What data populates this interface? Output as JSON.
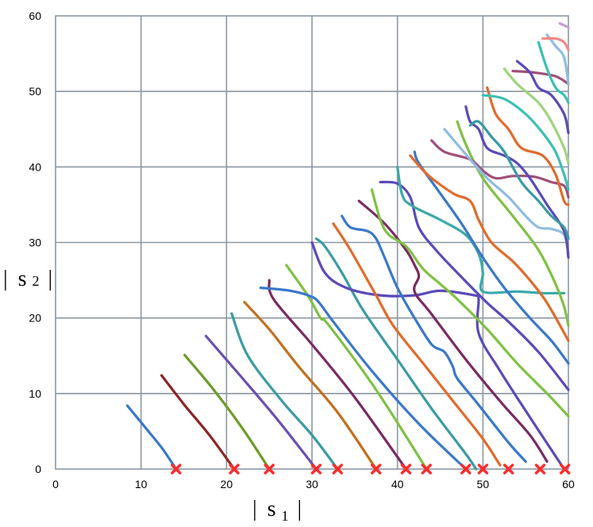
{
  "chart_data": {
    "type": "line",
    "title": "",
    "xlabel": {
      "bar": "|",
      "base": "s",
      "sub": "1"
    },
    "ylabel": {
      "bar": "|",
      "base": "s",
      "sub": "2"
    },
    "xlim": [
      0,
      60
    ],
    "ylim": [
      0,
      60
    ],
    "xticks": [
      "0",
      "10",
      "20",
      "30",
      "40",
      "50",
      "60"
    ],
    "yticks": [
      "0",
      "10",
      "20",
      "30",
      "40",
      "50",
      "60"
    ],
    "grid": true,
    "legend": "none",
    "markers": [
      14.1,
      20.9,
      25.0,
      30.5,
      33.0,
      37.5,
      41.0,
      43.4,
      48.0,
      50.0,
      53.0,
      56.7,
      59.6
    ],
    "marker_color": "#ff2a2a",
    "series": [
      {
        "color": "#3a78c9",
        "points": [
          [
            8.4,
            8.4
          ],
          [
            10.5,
            5.5
          ],
          [
            12.5,
            2.7
          ],
          [
            14.1,
            0
          ]
        ]
      },
      {
        "color": "#8b2525",
        "points": [
          [
            12.4,
            12.4
          ],
          [
            15.0,
            8.6
          ],
          [
            18.0,
            4.5
          ],
          [
            20.9,
            0
          ]
        ]
      },
      {
        "color": "#6e9b2a",
        "points": [
          [
            15.1,
            15.1
          ],
          [
            18.5,
            10.5
          ],
          [
            21.8,
            5.5
          ],
          [
            25.0,
            0
          ]
        ]
      },
      {
        "color": "#6a4fb0",
        "points": [
          [
            17.6,
            17.6
          ],
          [
            21.5,
            12.5
          ],
          [
            26.0,
            6.5
          ],
          [
            30.5,
            0
          ]
        ]
      },
      {
        "color": "#3a9ba3",
        "points": [
          [
            20.6,
            20.6
          ],
          [
            22.5,
            15.0
          ],
          [
            26.5,
            9.0
          ],
          [
            30.0,
            4.5
          ],
          [
            33.0,
            0
          ]
        ]
      },
      {
        "color": "#c0701f",
        "points": [
          [
            22.1,
            22.1
          ],
          [
            25.0,
            18.5
          ],
          [
            28.5,
            13.5
          ],
          [
            33.0,
            7.5
          ],
          [
            37.5,
            0
          ]
        ]
      },
      {
        "color": "#7a2a63",
        "points": [
          [
            25.0,
            25.0
          ],
          [
            25.5,
            22.5
          ],
          [
            30.0,
            16.5
          ],
          [
            35.0,
            9.5
          ],
          [
            41.0,
            0
          ]
        ]
      },
      {
        "color": "#7fc143",
        "points": [
          [
            27.0,
            27.0
          ],
          [
            29.5,
            23.0
          ],
          [
            31.0,
            20.0
          ],
          [
            32.0,
            19.0
          ],
          [
            37.5,
            10.5
          ],
          [
            43.4,
            0
          ]
        ]
      },
      {
        "color": "#3a78c9",
        "points": [
          [
            24.0,
            24.0
          ],
          [
            27.5,
            23.6
          ],
          [
            30.0,
            22.8
          ],
          [
            31.0,
            21.8
          ],
          [
            32.5,
            19.5
          ],
          [
            37.0,
            13.0
          ],
          [
            42.5,
            6.0
          ],
          [
            48.0,
            0
          ]
        ]
      },
      {
        "color": "#3a9ba3",
        "points": [
          [
            30.5,
            30.5
          ],
          [
            31.5,
            29.5
          ],
          [
            33.5,
            26.0
          ],
          [
            36.0,
            21.0
          ],
          [
            40.0,
            14.5
          ],
          [
            44.0,
            8.0
          ],
          [
            48.0,
            2.0
          ],
          [
            49.2,
            0
          ]
        ]
      },
      {
        "color": "#5b4ab8",
        "points": [
          [
            30.0,
            30.0
          ],
          [
            31.5,
            26.0
          ],
          [
            34.0,
            24.0
          ],
          [
            38.0,
            23.0
          ],
          [
            42.0,
            23.0
          ],
          [
            45.0,
            23.6
          ],
          [
            49.0,
            23.0
          ],
          [
            49.5,
            22.5
          ],
          [
            49.5,
            18.0
          ],
          [
            52.0,
            13.0
          ],
          [
            56.0,
            6.0
          ],
          [
            59.5,
            0
          ]
        ]
      },
      {
        "color": "#e06b2a",
        "points": [
          [
            32.5,
            32.5
          ],
          [
            34.5,
            29.0
          ],
          [
            37.5,
            23.0
          ],
          [
            39.5,
            19.0
          ],
          [
            43.0,
            14.0
          ],
          [
            46.5,
            9.0
          ],
          [
            50.0,
            4.0
          ],
          [
            52.0,
            0.5
          ]
        ]
      },
      {
        "color": "#7a2a63",
        "points": [
          [
            35.5,
            35.5
          ],
          [
            38.5,
            32.5
          ],
          [
            41.0,
            29.0
          ],
          [
            42.0,
            27.0
          ],
          [
            42.5,
            25.5
          ],
          [
            42.0,
            23.5
          ],
          [
            44.0,
            20.5
          ],
          [
            48.0,
            14.5
          ],
          [
            52.0,
            9.0
          ],
          [
            55.5,
            4.5
          ],
          [
            57.5,
            1.0
          ]
        ]
      },
      {
        "color": "#3a78c9",
        "points": [
          [
            33.5,
            33.5
          ],
          [
            34.5,
            32.0
          ],
          [
            36.5,
            31.5
          ],
          [
            37.5,
            30.5
          ],
          [
            38.5,
            28.0
          ],
          [
            40.0,
            24.0
          ],
          [
            42.0,
            20.0
          ],
          [
            44.0,
            16.5
          ],
          [
            45.5,
            15.5
          ],
          [
            46.5,
            13.5
          ],
          [
            47.0,
            12.0
          ],
          [
            49.5,
            8.5
          ],
          [
            53.0,
            3.5
          ],
          [
            55.0,
            1.0
          ]
        ]
      },
      {
        "color": "#5b4ab8",
        "points": [
          [
            38.0,
            38.0
          ],
          [
            40.0,
            37.8
          ],
          [
            41.5,
            36.0
          ],
          [
            42.5,
            32.0
          ],
          [
            44.5,
            29.0
          ],
          [
            47.0,
            26.0
          ],
          [
            50.5,
            22.0
          ],
          [
            53.0,
            19.5
          ],
          [
            56.5,
            15.5
          ],
          [
            60.0,
            10.5
          ]
        ]
      },
      {
        "color": "#7fc143",
        "points": [
          [
            37.0,
            37.0
          ],
          [
            38.0,
            33.0
          ],
          [
            39.0,
            31.0
          ],
          [
            41.0,
            29.5
          ],
          [
            43.0,
            26.5
          ],
          [
            45.0,
            24.5
          ],
          [
            47.0,
            22.5
          ],
          [
            50.5,
            18.5
          ],
          [
            54.0,
            14.0
          ],
          [
            57.5,
            10.0
          ],
          [
            60.0,
            7.0
          ]
        ]
      },
      {
        "color": "#3aa9a9",
        "points": [
          [
            40.0,
            40.0
          ],
          [
            40.5,
            36.5
          ],
          [
            41.5,
            35.0
          ],
          [
            45.0,
            33.0
          ],
          [
            48.0,
            31.0
          ],
          [
            49.5,
            28.5
          ],
          [
            50.0,
            26.0
          ],
          [
            50.0,
            23.5
          ],
          [
            54.0,
            23.5
          ],
          [
            57.0,
            23.3
          ],
          [
            59.5,
            23.3
          ]
        ]
      },
      {
        "color": "#3a78c9",
        "points": [
          [
            42.0,
            42.0
          ],
          [
            42.5,
            40.5
          ],
          [
            45.0,
            36.5
          ],
          [
            47.5,
            32.5
          ],
          [
            50.0,
            28.0
          ],
          [
            52.5,
            24.0
          ],
          [
            55.5,
            20.0
          ],
          [
            58.0,
            17.0
          ],
          [
            60.0,
            14.0
          ]
        ]
      },
      {
        "color": "#e06b2a",
        "points": [
          [
            41.5,
            41.5
          ],
          [
            43.5,
            39.0
          ],
          [
            46.5,
            36.5
          ],
          [
            48.5,
            35.5
          ],
          [
            49.5,
            33.0
          ],
          [
            51.0,
            30.0
          ],
          [
            53.5,
            27.5
          ],
          [
            55.5,
            25.0
          ],
          [
            57.5,
            22.0
          ],
          [
            60.0,
            17.0
          ]
        ]
      },
      {
        "color": "#7fc143",
        "points": [
          [
            47.0,
            46.0
          ],
          [
            48.0,
            43.0
          ],
          [
            50.0,
            38.5
          ],
          [
            53.5,
            33.5
          ],
          [
            56.5,
            29.0
          ],
          [
            58.5,
            24.5
          ],
          [
            59.5,
            21.5
          ],
          [
            60.0,
            19.0
          ]
        ]
      },
      {
        "color": "#a04f7c",
        "points": [
          [
            44.0,
            43.5
          ],
          [
            45.5,
            42.0
          ],
          [
            48.5,
            41.0
          ],
          [
            50.0,
            39.5
          ],
          [
            51.5,
            38.5
          ],
          [
            53.5,
            38.8
          ],
          [
            56.0,
            38.7
          ],
          [
            58.0,
            38.0
          ],
          [
            59.5,
            37.5
          ],
          [
            60.0,
            36.0
          ]
        ]
      },
      {
        "color": "#8ebde0",
        "points": [
          [
            45.5,
            45.0
          ],
          [
            48.5,
            41.0
          ],
          [
            50.5,
            38.5
          ],
          [
            53.0,
            36.0
          ],
          [
            55.0,
            33.5
          ],
          [
            56.5,
            32.0
          ],
          [
            58.0,
            31.8
          ],
          [
            59.5,
            31.0
          ],
          [
            60.0,
            28.5
          ]
        ]
      },
      {
        "color": "#5b4ab8",
        "points": [
          [
            48.0,
            48.0
          ],
          [
            48.5,
            46.0
          ],
          [
            49.5,
            45.0
          ],
          [
            50.5,
            42.5
          ],
          [
            52.5,
            41.5
          ],
          [
            54.0,
            40.5
          ],
          [
            55.5,
            38.5
          ],
          [
            57.5,
            35.0
          ],
          [
            59.5,
            31.5
          ],
          [
            60.0,
            28.0
          ]
        ]
      },
      {
        "color": "#3a9ba3",
        "points": [
          [
            48.5,
            45.5
          ],
          [
            49.5,
            46.0
          ],
          [
            51.0,
            44.0
          ],
          [
            52.5,
            42.0
          ],
          [
            54.5,
            38.0
          ],
          [
            56.5,
            35.5
          ],
          [
            58.0,
            33.5
          ],
          [
            59.5,
            32.0
          ],
          [
            60.0,
            30.5
          ]
        ]
      },
      {
        "color": "#e06b2a",
        "points": [
          [
            50.5,
            50.5
          ],
          [
            51.5,
            47.0
          ],
          [
            53.0,
            45.0
          ],
          [
            54.5,
            42.5
          ],
          [
            57.0,
            41.5
          ],
          [
            58.5,
            39.0
          ],
          [
            59.5,
            35.5
          ],
          [
            60.0,
            35.0
          ]
        ]
      },
      {
        "color": "#3ac0b4",
        "points": [
          [
            50.0,
            49.5
          ],
          [
            52.5,
            49.0
          ],
          [
            55.0,
            47.0
          ],
          [
            57.0,
            44.5
          ],
          [
            58.5,
            42.0
          ],
          [
            59.5,
            39.0
          ],
          [
            60.0,
            37.0
          ]
        ]
      },
      {
        "color": "#9fd47c",
        "points": [
          [
            52.5,
            53.0
          ],
          [
            54.0,
            51.0
          ],
          [
            56.5,
            48.5
          ],
          [
            58.0,
            46.0
          ],
          [
            59.5,
            42.5
          ],
          [
            60.0,
            40.5
          ]
        ]
      },
      {
        "color": "#a04f7c",
        "points": [
          [
            53.5,
            52.7
          ],
          [
            56.0,
            52.5
          ],
          [
            58.5,
            52.0
          ],
          [
            60.0,
            51.0
          ]
        ]
      },
      {
        "color": "#5b4ab8",
        "points": [
          [
            54.0,
            54.0
          ],
          [
            55.5,
            52.5
          ],
          [
            56.5,
            50.5
          ],
          [
            58.0,
            49.5
          ],
          [
            59.5,
            47.0
          ],
          [
            60.0,
            44.5
          ]
        ]
      },
      {
        "color": "#3ac0b4",
        "points": [
          [
            56.5,
            56.5
          ],
          [
            57.5,
            53.0
          ],
          [
            58.5,
            50.5
          ],
          [
            59.5,
            49.5
          ],
          [
            60.0,
            48.5
          ]
        ]
      },
      {
        "color": "#8ebde0",
        "points": [
          [
            57.5,
            57.5
          ],
          [
            58.5,
            56.0
          ],
          [
            59.5,
            54.5
          ],
          [
            60.0,
            51.0
          ]
        ]
      },
      {
        "color": "#f08a86",
        "points": [
          [
            57.0,
            57.0
          ],
          [
            58.5,
            57.0
          ],
          [
            59.5,
            56.5
          ],
          [
            60.0,
            55.5
          ]
        ]
      },
      {
        "color": "#c79bd6",
        "points": [
          [
            59.0,
            59.0
          ],
          [
            60.0,
            58.5
          ]
        ]
      }
    ]
  }
}
